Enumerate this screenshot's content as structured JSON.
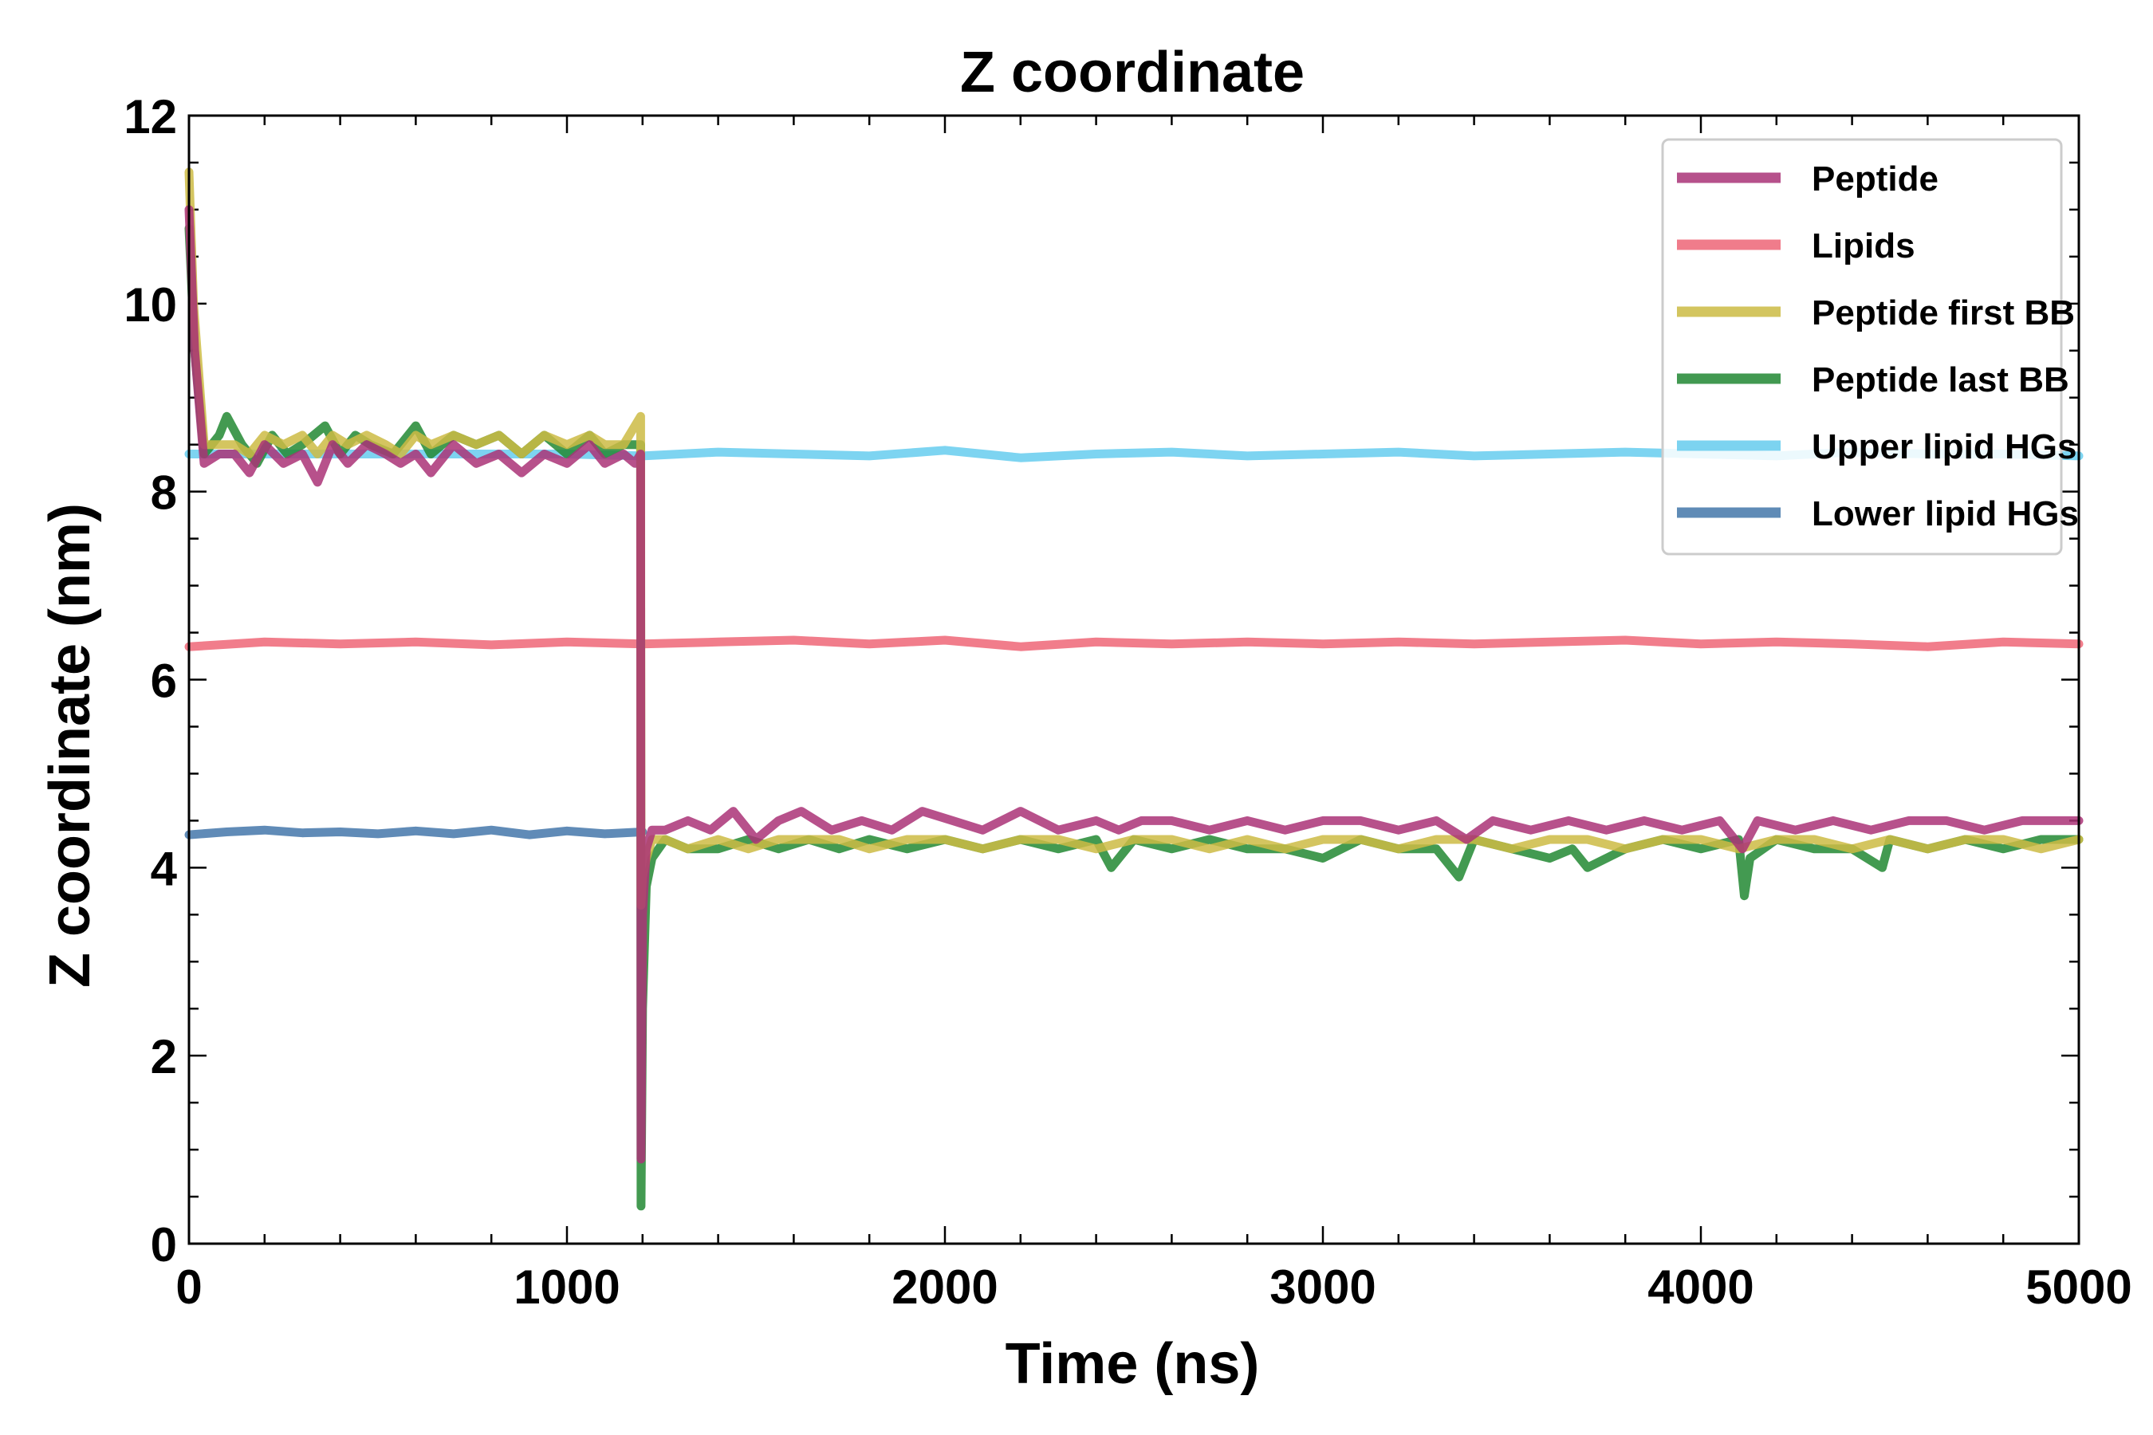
{
  "chart_data": {
    "type": "line",
    "title": "Z coordinate",
    "xlabel": "Time (ns)",
    "ylabel": "Z coordinate (nm)",
    "xlim": [
      0,
      5000
    ],
    "ylim": [
      0,
      12
    ],
    "xticks": [
      "0",
      "1000",
      "2000",
      "3000",
      "4000",
      "5000"
    ],
    "yticks": [
      "0",
      "2",
      "4",
      "6",
      "8",
      "10",
      "12"
    ],
    "grid": false,
    "legend_position": "top-right",
    "series": [
      {
        "name": "Peptide",
        "color": "#aa3377",
        "x": [
          0,
          15,
          40,
          80,
          120,
          160,
          200,
          250,
          300,
          340,
          380,
          420,
          470,
          520,
          560,
          600,
          640,
          700,
          760,
          820,
          880,
          940,
          1000,
          1060,
          1100,
          1150,
          1180,
          1195,
          1196,
          1200,
          1210,
          1225,
          1260,
          1320,
          1380,
          1440,
          1500,
          1560,
          1620,
          1700,
          1780,
          1860,
          1940,
          2020,
          2100,
          2200,
          2300,
          2400,
          2460,
          2520,
          2600,
          2700,
          2800,
          2900,
          3000,
          3100,
          3200,
          3300,
          3380,
          3450,
          3550,
          3650,
          3750,
          3850,
          3950,
          4050,
          4110,
          4150,
          4250,
          4350,
          4450,
          4550,
          4650,
          4750,
          4850,
          4950,
          5000
        ],
        "y": [
          11.0,
          9.5,
          8.3,
          8.4,
          8.4,
          8.2,
          8.5,
          8.3,
          8.4,
          8.1,
          8.5,
          8.3,
          8.5,
          8.4,
          8.3,
          8.4,
          8.2,
          8.5,
          8.3,
          8.4,
          8.2,
          8.4,
          8.3,
          8.5,
          8.3,
          8.4,
          8.3,
          8.4,
          0.9,
          3.5,
          4.2,
          4.4,
          4.4,
          4.5,
          4.4,
          4.6,
          4.3,
          4.5,
          4.6,
          4.4,
          4.5,
          4.4,
          4.6,
          4.5,
          4.4,
          4.6,
          4.4,
          4.5,
          4.4,
          4.5,
          4.5,
          4.4,
          4.5,
          4.4,
          4.5,
          4.5,
          4.4,
          4.5,
          4.3,
          4.5,
          4.4,
          4.5,
          4.4,
          4.5,
          4.4,
          4.5,
          4.2,
          4.5,
          4.4,
          4.5,
          4.4,
          4.5,
          4.5,
          4.4,
          4.5,
          4.5,
          4.5
        ]
      },
      {
        "name": "Lipids",
        "color": "#ee6677",
        "x": [
          0,
          200,
          400,
          600,
          800,
          1000,
          1200,
          1400,
          1600,
          1800,
          2000,
          2200,
          2400,
          2600,
          2800,
          3000,
          3200,
          3400,
          3600,
          3800,
          4000,
          4200,
          4400,
          4600,
          4800,
          5000
        ],
        "y": [
          6.35,
          6.4,
          6.38,
          6.4,
          6.37,
          6.4,
          6.38,
          6.4,
          6.42,
          6.38,
          6.42,
          6.35,
          6.4,
          6.38,
          6.4,
          6.38,
          6.4,
          6.38,
          6.4,
          6.42,
          6.38,
          6.4,
          6.38,
          6.35,
          6.4,
          6.38
        ]
      },
      {
        "name": "Peptide first BB",
        "color": "#ccbb44",
        "x": [
          0,
          12,
          40,
          80,
          120,
          160,
          200,
          250,
          300,
          340,
          380,
          420,
          470,
          520,
          560,
          600,
          640,
          700,
          760,
          820,
          880,
          940,
          1000,
          1060,
          1100,
          1150,
          1195,
          1196,
          1200,
          1210,
          1225,
          1260,
          1320,
          1400,
          1480,
          1560,
          1640,
          1720,
          1800,
          1900,
          2000,
          2100,
          2200,
          2300,
          2400,
          2500,
          2600,
          2700,
          2800,
          2900,
          3000,
          3100,
          3200,
          3300,
          3400,
          3500,
          3600,
          3700,
          3800,
          3900,
          4000,
          4100,
          4200,
          4300,
          4400,
          4500,
          4600,
          4700,
          4800,
          4900,
          5000
        ],
        "y": [
          11.4,
          10.0,
          8.5,
          8.5,
          8.5,
          8.4,
          8.6,
          8.5,
          8.6,
          8.4,
          8.6,
          8.5,
          8.6,
          8.5,
          8.4,
          8.6,
          8.5,
          8.6,
          8.5,
          8.6,
          8.4,
          8.6,
          8.5,
          8.6,
          8.5,
          8.5,
          8.8,
          3.6,
          3.9,
          4.1,
          4.3,
          4.3,
          4.2,
          4.3,
          4.2,
          4.3,
          4.3,
          4.3,
          4.2,
          4.3,
          4.3,
          4.2,
          4.3,
          4.3,
          4.2,
          4.3,
          4.3,
          4.2,
          4.3,
          4.2,
          4.3,
          4.3,
          4.2,
          4.3,
          4.3,
          4.2,
          4.3,
          4.3,
          4.2,
          4.3,
          4.3,
          4.2,
          4.3,
          4.3,
          4.2,
          4.3,
          4.2,
          4.3,
          4.3,
          4.2,
          4.3
        ]
      },
      {
        "name": "Peptide last BB",
        "color": "#228833",
        "x": [
          0,
          15,
          40,
          80,
          100,
          140,
          180,
          220,
          260,
          300,
          360,
          400,
          440,
          480,
          540,
          600,
          640,
          700,
          760,
          820,
          880,
          940,
          1000,
          1060,
          1100,
          1150,
          1195,
          1196,
          1200,
          1210,
          1225,
          1260,
          1320,
          1400,
          1480,
          1560,
          1640,
          1720,
          1800,
          1900,
          2000,
          2100,
          2200,
          2300,
          2400,
          2440,
          2500,
          2600,
          2700,
          2800,
          2900,
          3000,
          3100,
          3200,
          3300,
          3360,
          3400,
          3500,
          3600,
          3660,
          3700,
          3800,
          3900,
          4000,
          4100,
          4115,
          4130,
          4200,
          4300,
          4400,
          4480,
          4500,
          4600,
          4700,
          4800,
          4900,
          5000
        ],
        "y": [
          10.8,
          9.5,
          8.4,
          8.6,
          8.8,
          8.5,
          8.3,
          8.6,
          8.4,
          8.5,
          8.7,
          8.4,
          8.6,
          8.5,
          8.4,
          8.7,
          8.4,
          8.6,
          8.5,
          8.6,
          8.4,
          8.6,
          8.4,
          8.6,
          8.4,
          8.5,
          8.5,
          0.4,
          2.5,
          3.8,
          4.1,
          4.3,
          4.2,
          4.2,
          4.3,
          4.2,
          4.3,
          4.2,
          4.3,
          4.2,
          4.3,
          4.2,
          4.3,
          4.2,
          4.3,
          4.0,
          4.3,
          4.2,
          4.3,
          4.2,
          4.2,
          4.1,
          4.3,
          4.2,
          4.2,
          3.9,
          4.3,
          4.2,
          4.1,
          4.2,
          4.0,
          4.2,
          4.3,
          4.2,
          4.3,
          3.7,
          4.1,
          4.3,
          4.2,
          4.2,
          4.0,
          4.3,
          4.2,
          4.3,
          4.2,
          4.3,
          4.3
        ]
      },
      {
        "name": "Upper lipid HGs",
        "color": "#66ccee",
        "x": [
          0,
          200,
          400,
          600,
          800,
          1000,
          1200,
          1400,
          1600,
          1800,
          2000,
          2200,
          2400,
          2600,
          2800,
          3000,
          3200,
          3400,
          3600,
          3800,
          4000,
          4200,
          4400,
          4600,
          4800,
          5000
        ],
        "y": [
          8.4,
          8.4,
          8.4,
          8.4,
          8.4,
          8.4,
          8.38,
          8.42,
          8.4,
          8.38,
          8.44,
          8.36,
          8.4,
          8.42,
          8.38,
          8.4,
          8.42,
          8.38,
          8.4,
          8.42,
          8.4,
          8.38,
          8.42,
          8.4,
          8.4,
          8.38
        ]
      },
      {
        "name": "Lower lipid HGs",
        "color": "#4477aa",
        "x": [
          0,
          100,
          200,
          300,
          400,
          500,
          600,
          700,
          800,
          900,
          1000,
          1100,
          1200
        ],
        "y": [
          4.35,
          4.38,
          4.4,
          4.37,
          4.38,
          4.36,
          4.39,
          4.36,
          4.4,
          4.35,
          4.39,
          4.36,
          4.38
        ]
      }
    ]
  }
}
